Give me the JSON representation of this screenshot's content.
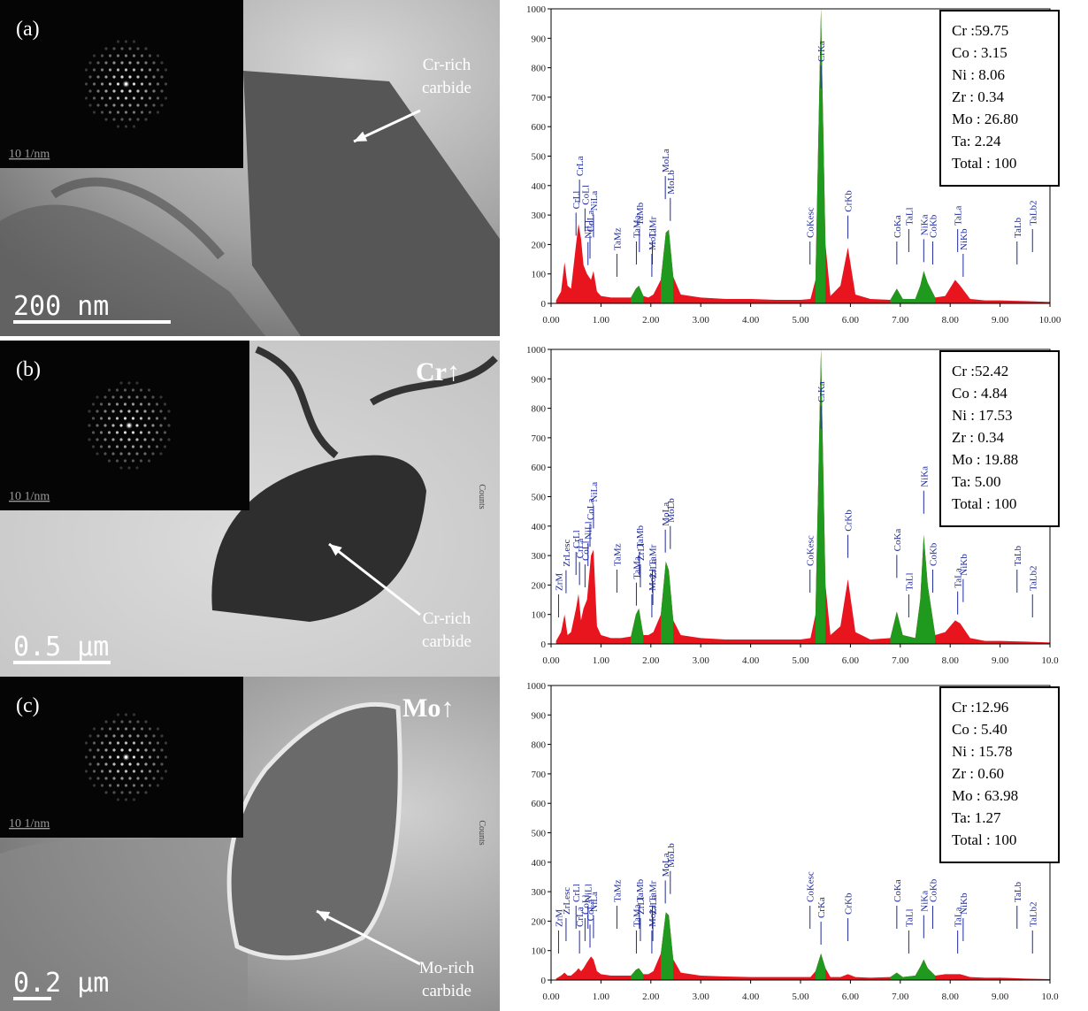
{
  "panels": [
    {
      "label": "(a)",
      "diffraction_scale": "10 1/nm",
      "scale_bar": "200 nm",
      "annotation": [
        "Cr-rich",
        "carbide"
      ]
    },
    {
      "label": "(b)",
      "diffraction_scale": "10 1/nm",
      "scale_bar": "0.5 μm",
      "enrichment": "Cr↑",
      "annotation": [
        "Cr-rich",
        "carbide"
      ]
    },
    {
      "label": "(c)",
      "diffraction_scale": "10 1/nm",
      "scale_bar": "0.2 μm",
      "enrichment": "Mo↑",
      "annotation": [
        "Mo-rich",
        "carbide"
      ]
    }
  ],
  "chart_data": [
    {
      "type": "area",
      "x": [
        0.1,
        0.2,
        0.27,
        0.33,
        0.4,
        0.5,
        0.55,
        0.6,
        0.65,
        0.72,
        0.8,
        0.85,
        0.92,
        1.0,
        1.2,
        1.4,
        1.6,
        1.7,
        1.76,
        1.85,
        1.95,
        2.05,
        2.2,
        2.3,
        2.36,
        2.45,
        2.6,
        3.0,
        3.5,
        4.0,
        4.5,
        5.0,
        5.2,
        5.3,
        5.41,
        5.5,
        5.6,
        5.8,
        5.95,
        6.1,
        6.4,
        6.8,
        6.93,
        7.05,
        7.3,
        7.4,
        7.47,
        7.55,
        7.7,
        7.9,
        8.1,
        8.2,
        8.4,
        8.7,
        9.0,
        9.5,
        10.0
      ],
      "series": [
        {
          "color": "#e8141e",
          "values": [
            10,
            40,
            140,
            60,
            50,
            200,
            270,
            220,
            130,
            100,
            80,
            110,
            40,
            25,
            20,
            20,
            20,
            50,
            60,
            25,
            20,
            30,
            80,
            240,
            250,
            90,
            30,
            20,
            15,
            15,
            12,
            12,
            15,
            80,
            1000,
            200,
            25,
            60,
            190,
            30,
            15,
            12,
            50,
            15,
            15,
            60,
            110,
            70,
            20,
            25,
            80,
            60,
            15,
            10,
            10,
            8,
            5
          ]
        },
        {
          "color": "#1f9a1f",
          "values": [
            null,
            null,
            null,
            null,
            null,
            null,
            null,
            null,
            null,
            null,
            null,
            null,
            null,
            null,
            null,
            null,
            20,
            50,
            60,
            25,
            null,
            null,
            80,
            240,
            250,
            90,
            null,
            null,
            null,
            null,
            null,
            null,
            null,
            80,
            1000,
            200,
            null,
            null,
            null,
            null,
            null,
            12,
            50,
            15,
            15,
            60,
            110,
            70,
            20,
            null,
            null,
            null,
            null,
            null,
            null,
            null,
            null
          ]
        }
      ],
      "xlim": [
        0,
        10
      ],
      "xticks": [
        {
          "value": 0,
          "label": "0.00"
        },
        {
          "value": 1,
          "label": "1.00"
        },
        {
          "value": 2,
          "label": "2.00"
        },
        {
          "value": 3,
          "label": "3.00"
        },
        {
          "value": 4,
          "label": "4.00"
        },
        {
          "value": 5,
          "label": "5.00"
        },
        {
          "value": 6,
          "label": "6.00"
        },
        {
          "value": 7,
          "label": "7.00"
        },
        {
          "value": 8,
          "label": "8.00"
        },
        {
          "value": 9,
          "label": "9.00"
        },
        {
          "value": 10,
          "label": "10.00"
        }
      ],
      "ylim": [
        0,
        1000
      ],
      "yticks": [
        0,
        100,
        200,
        300,
        400,
        500,
        600,
        700,
        800,
        900,
        1000
      ],
      "peaks": [
        {
          "label": "CrLl",
          "x": 0.5
        },
        {
          "label": "CrLa",
          "x": 0.57
        },
        {
          "label": "CoLl",
          "x": 0.68
        },
        {
          "label": "NiLl",
          "x": 0.74
        },
        {
          "label": "CoLa",
          "x": 0.78
        },
        {
          "label": "NiLa",
          "x": 0.85
        },
        {
          "label": "TaMz",
          "x": 1.32
        },
        {
          "label": "TaMa",
          "x": 1.71
        },
        {
          "label": "TaMb",
          "x": 1.77
        },
        {
          "label": "MoLl",
          "x": 2.02
        },
        {
          "label": "TaMr",
          "x": 2.03
        },
        {
          "label": "MoLa",
          "x": 2.29
        },
        {
          "label": "MoLb",
          "x": 2.39
        },
        {
          "label": "CoKesc",
          "x": 5.19
        },
        {
          "label": "CrKa",
          "x": 5.41
        },
        {
          "label": "CrKb",
          "x": 5.95
        },
        {
          "label": "CoKa",
          "x": 6.93
        },
        {
          "label": "TaLl",
          "x": 7.17
        },
        {
          "label": "NiKa",
          "x": 7.47
        },
        {
          "label": "CoKb",
          "x": 7.65
        },
        {
          "label": "TaLa",
          "x": 8.15
        },
        {
          "label": "NiKb",
          "x": 8.26
        },
        {
          "label": "TaLb",
          "x": 9.34
        },
        {
          "label": "TaLb2",
          "x": 9.65
        }
      ],
      "composition": [
        "Cr :59.75",
        "Co : 3.15",
        "Ni : 8.06",
        "Zr : 0.34",
        "Mo : 26.80",
        "Ta: 2.24",
        "Total : 100"
      ]
    },
    {
      "type": "area",
      "y_label": "Counts",
      "x": [
        0.1,
        0.2,
        0.27,
        0.33,
        0.4,
        0.5,
        0.55,
        0.6,
        0.65,
        0.72,
        0.8,
        0.85,
        0.92,
        1.0,
        1.2,
        1.4,
        1.6,
        1.7,
        1.76,
        1.85,
        1.95,
        2.05,
        2.2,
        2.3,
        2.36,
        2.45,
        2.6,
        3.0,
        3.5,
        4.0,
        4.5,
        5.0,
        5.2,
        5.3,
        5.41,
        5.5,
        5.6,
        5.8,
        5.95,
        6.1,
        6.4,
        6.8,
        6.93,
        7.05,
        7.3,
        7.4,
        7.47,
        7.55,
        7.7,
        7.9,
        8.1,
        8.2,
        8.4,
        8.7,
        9.0,
        9.5,
        10.0
      ],
      "series": [
        {
          "color": "#e8141e",
          "values": [
            10,
            40,
            100,
            30,
            40,
            120,
            170,
            80,
            120,
            150,
            300,
            320,
            60,
            30,
            20,
            20,
            25,
            100,
            120,
            30,
            30,
            40,
            100,
            280,
            250,
            80,
            30,
            20,
            15,
            15,
            15,
            15,
            20,
            100,
            1000,
            200,
            30,
            60,
            220,
            40,
            15,
            20,
            110,
            30,
            20,
            150,
            370,
            200,
            30,
            40,
            80,
            70,
            20,
            10,
            10,
            8,
            5
          ]
        },
        {
          "color": "#1f9a1f",
          "values": [
            null,
            null,
            null,
            null,
            null,
            null,
            null,
            null,
            null,
            null,
            null,
            null,
            null,
            null,
            null,
            null,
            25,
            100,
            120,
            30,
            null,
            null,
            100,
            280,
            250,
            80,
            null,
            null,
            null,
            null,
            null,
            null,
            null,
            100,
            1000,
            200,
            null,
            null,
            null,
            null,
            null,
            20,
            110,
            30,
            20,
            150,
            370,
            200,
            30,
            null,
            null,
            null,
            null,
            null,
            null,
            null,
            null
          ]
        }
      ],
      "xlim": [
        0,
        10
      ],
      "xticks": [
        {
          "value": 0,
          "label": "0.00"
        },
        {
          "value": 1,
          "label": "1.00"
        },
        {
          "value": 2,
          "label": "2.00"
        },
        {
          "value": 3,
          "label": "3.00"
        },
        {
          "value": 4,
          "label": "4.00"
        },
        {
          "value": 5,
          "label": "5.00"
        },
        {
          "value": 6,
          "label": "6.00"
        },
        {
          "value": 7,
          "label": "7.00"
        },
        {
          "value": 8,
          "label": "8.00"
        },
        {
          "value": 9,
          "label": "9.00"
        },
        {
          "value": 10,
          "label": "10.0"
        }
      ],
      "ylim": [
        0,
        1000
      ],
      "yticks": [
        0,
        100,
        200,
        300,
        400,
        500,
        600,
        700,
        800,
        900,
        1000
      ],
      "peaks": [
        {
          "label": "ZrM",
          "x": 0.15
        },
        {
          "label": "ZrLesc",
          "x": 0.3
        },
        {
          "label": "CrLl",
          "x": 0.5
        },
        {
          "label": "CrLa",
          "x": 0.57
        },
        {
          "label": "CoLl",
          "x": 0.68
        },
        {
          "label": "NiLl",
          "x": 0.74
        },
        {
          "label": "CoLa",
          "x": 0.78
        },
        {
          "label": "NiLa",
          "x": 0.85
        },
        {
          "label": "TaMz",
          "x": 1.32
        },
        {
          "label": "TaMa",
          "x": 1.71
        },
        {
          "label": "ZrLl",
          "x": 1.79
        },
        {
          "label": "TaMb",
          "x": 1.77
        },
        {
          "label": "MoLl",
          "x": 2.02
        },
        {
          "label": "ZrLa",
          "x": 2.04
        },
        {
          "label": "TaMr",
          "x": 2.03
        },
        {
          "label": "MoLa",
          "x": 2.29
        },
        {
          "label": "MoLb",
          "x": 2.39
        },
        {
          "label": "CoKesc",
          "x": 5.19
        },
        {
          "label": "CrKa",
          "x": 5.41
        },
        {
          "label": "CrKb",
          "x": 5.95
        },
        {
          "label": "CoKa",
          "x": 6.93
        },
        {
          "label": "TaLl",
          "x": 7.17
        },
        {
          "label": "NiKa",
          "x": 7.47
        },
        {
          "label": "CoKb",
          "x": 7.65
        },
        {
          "label": "TaLa",
          "x": 8.15
        },
        {
          "label": "NiKb",
          "x": 8.26
        },
        {
          "label": "TaLb",
          "x": 9.34
        },
        {
          "label": "TaLb2",
          "x": 9.65
        }
      ],
      "composition": [
        "Cr :52.42",
        "Co : 4.84",
        "Ni : 17.53",
        "Zr : 0.34",
        "Mo : 19.88",
        "Ta: 5.00",
        "Total : 100"
      ]
    },
    {
      "type": "area",
      "y_label": "Counts",
      "x": [
        0.1,
        0.2,
        0.27,
        0.33,
        0.4,
        0.5,
        0.55,
        0.6,
        0.65,
        0.72,
        0.8,
        0.85,
        0.92,
        1.0,
        1.2,
        1.4,
        1.6,
        1.7,
        1.76,
        1.85,
        1.95,
        2.05,
        2.2,
        2.3,
        2.36,
        2.45,
        2.6,
        3.0,
        3.5,
        4.0,
        4.5,
        5.0,
        5.2,
        5.3,
        5.41,
        5.5,
        5.6,
        5.8,
        5.95,
        6.1,
        6.4,
        6.8,
        6.93,
        7.05,
        7.3,
        7.4,
        7.47,
        7.55,
        7.7,
        7.9,
        8.1,
        8.2,
        8.4,
        8.7,
        9.0,
        9.5,
        10.0
      ],
      "series": [
        {
          "color": "#e8141e",
          "values": [
            5,
            15,
            25,
            15,
            15,
            30,
            40,
            30,
            40,
            60,
            80,
            70,
            30,
            20,
            15,
            15,
            15,
            35,
            40,
            20,
            20,
            30,
            90,
            230,
            220,
            70,
            25,
            15,
            12,
            10,
            10,
            10,
            10,
            30,
            90,
            40,
            10,
            10,
            20,
            10,
            8,
            10,
            25,
            10,
            15,
            45,
            70,
            40,
            15,
            20,
            20,
            20,
            10,
            8,
            8,
            5,
            3
          ]
        },
        {
          "color": "#1f9a1f",
          "values": [
            null,
            null,
            null,
            null,
            null,
            null,
            null,
            null,
            null,
            null,
            null,
            null,
            null,
            null,
            null,
            null,
            15,
            35,
            40,
            20,
            null,
            null,
            90,
            230,
            220,
            70,
            null,
            null,
            null,
            null,
            null,
            null,
            null,
            30,
            90,
            40,
            null,
            null,
            null,
            null,
            null,
            10,
            25,
            10,
            15,
            45,
            70,
            40,
            15,
            null,
            null,
            null,
            null,
            null,
            null,
            null,
            null
          ]
        }
      ],
      "xlim": [
        0,
        10
      ],
      "xticks": [
        {
          "value": 0,
          "label": "0.00"
        },
        {
          "value": 1,
          "label": "1.00"
        },
        {
          "value": 2,
          "label": "2.00"
        },
        {
          "value": 3,
          "label": "3.00"
        },
        {
          "value": 4,
          "label": "4.00"
        },
        {
          "value": 5,
          "label": "5.00"
        },
        {
          "value": 6,
          "label": "6.00"
        },
        {
          "value": 7,
          "label": "7.00"
        },
        {
          "value": 8,
          "label": "8.00"
        },
        {
          "value": 9,
          "label": "9.00"
        },
        {
          "value": 10,
          "label": "10.0"
        }
      ],
      "ylim": [
        0,
        1000
      ],
      "yticks": [
        0,
        100,
        200,
        300,
        400,
        500,
        600,
        700,
        800,
        900,
        1000
      ],
      "peaks": [
        {
          "label": "ZrM",
          "x": 0.15
        },
        {
          "label": "ZrLesc",
          "x": 0.3
        },
        {
          "label": "CrLl",
          "x": 0.5
        },
        {
          "label": "CrLa",
          "x": 0.57
        },
        {
          "label": "CoLl",
          "x": 0.68
        },
        {
          "label": "NiLl",
          "x": 0.74
        },
        {
          "label": "CoLa",
          "x": 0.78
        },
        {
          "label": "NiLa",
          "x": 0.85
        },
        {
          "label": "TaMz",
          "x": 1.32
        },
        {
          "label": "TaMa",
          "x": 1.71
        },
        {
          "label": "ZrLl",
          "x": 1.79
        },
        {
          "label": "TaMb",
          "x": 1.77
        },
        {
          "label": "MoLl",
          "x": 2.02
        },
        {
          "label": "ZrLa",
          "x": 2.04
        },
        {
          "label": "TaMr",
          "x": 2.03
        },
        {
          "label": "MoLa",
          "x": 2.29
        },
        {
          "label": "MoLb",
          "x": 2.39
        },
        {
          "label": "CoKesc",
          "x": 5.19
        },
        {
          "label": "CrKa",
          "x": 5.41
        },
        {
          "label": "CrKb",
          "x": 5.95
        },
        {
          "label": "CoKa",
          "x": 6.93
        },
        {
          "label": "TaLl",
          "x": 7.17
        },
        {
          "label": "NiKa",
          "x": 7.47
        },
        {
          "label": "CoKb",
          "x": 7.65
        },
        {
          "label": "TaLa",
          "x": 8.15
        },
        {
          "label": "NiKb",
          "x": 8.26
        },
        {
          "label": "TaLb",
          "x": 9.34
        },
        {
          "label": "TaLb2",
          "x": 9.65
        }
      ],
      "composition": [
        "Cr :12.96",
        "Co : 5.40",
        "Ni : 15.78",
        "Zr : 0.60",
        "Mo : 63.98",
        "Ta: 1.27",
        "Total : 100"
      ]
    }
  ]
}
